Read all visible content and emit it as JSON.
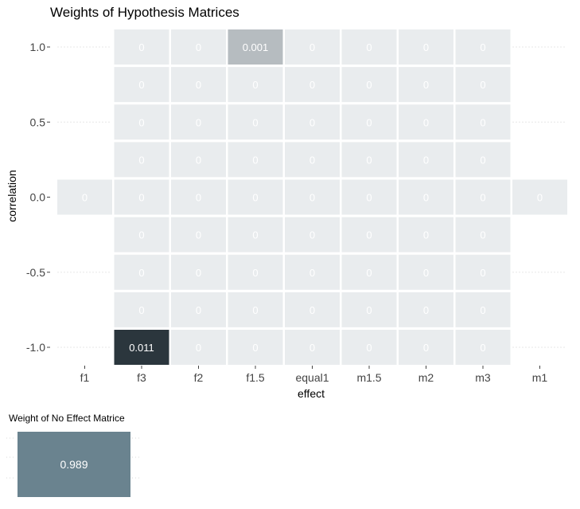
{
  "chart_data": [
    {
      "type": "heatmap",
      "title": "Weights of Hypothesis Matrices",
      "xlabel": "effect",
      "ylabel": "correlation",
      "x_categories": [
        "f1",
        "f3",
        "f2",
        "f1.5",
        "equal1",
        "m1.5",
        "m2",
        "m3",
        "m1"
      ],
      "y_rows": [
        1.0,
        0.75,
        0.5,
        0.25,
        0.0,
        -0.25,
        -0.5,
        -0.75,
        -1.0
      ],
      "y_tick_labels": [
        "1.0",
        "0.5",
        "0.0",
        "-0.5",
        "-1.0"
      ],
      "y_tick_values": [
        1.0,
        0.5,
        0.0,
        -0.5,
        -1.0
      ],
      "cells": [
        {
          "x": "f3",
          "y": 1.0,
          "value": 0,
          "label": "0"
        },
        {
          "x": "f2",
          "y": 1.0,
          "value": 0,
          "label": "0"
        },
        {
          "x": "f1.5",
          "y": 1.0,
          "value": 0.001,
          "label": "0.001"
        },
        {
          "x": "equal1",
          "y": 1.0,
          "value": 0,
          "label": "0"
        },
        {
          "x": "m1.5",
          "y": 1.0,
          "value": 0,
          "label": "0"
        },
        {
          "x": "m2",
          "y": 1.0,
          "value": 0,
          "label": "0"
        },
        {
          "x": "m3",
          "y": 1.0,
          "value": 0,
          "label": "0"
        },
        {
          "x": "f3",
          "y": 0.75,
          "value": 0,
          "label": "0"
        },
        {
          "x": "f2",
          "y": 0.75,
          "value": 0,
          "label": "0"
        },
        {
          "x": "f1.5",
          "y": 0.75,
          "value": 0,
          "label": "0"
        },
        {
          "x": "equal1",
          "y": 0.75,
          "value": 0,
          "label": "0"
        },
        {
          "x": "m1.5",
          "y": 0.75,
          "value": 0,
          "label": "0"
        },
        {
          "x": "m2",
          "y": 0.75,
          "value": 0,
          "label": "0"
        },
        {
          "x": "m3",
          "y": 0.75,
          "value": 0,
          "label": "0"
        },
        {
          "x": "f3",
          "y": 0.5,
          "value": 0,
          "label": "0"
        },
        {
          "x": "f2",
          "y": 0.5,
          "value": 0,
          "label": "0"
        },
        {
          "x": "f1.5",
          "y": 0.5,
          "value": 0,
          "label": "0"
        },
        {
          "x": "equal1",
          "y": 0.5,
          "value": 0,
          "label": "0"
        },
        {
          "x": "m1.5",
          "y": 0.5,
          "value": 0,
          "label": "0"
        },
        {
          "x": "m2",
          "y": 0.5,
          "value": 0,
          "label": "0"
        },
        {
          "x": "m3",
          "y": 0.5,
          "value": 0,
          "label": "0"
        },
        {
          "x": "f3",
          "y": 0.25,
          "value": 0,
          "label": "0"
        },
        {
          "x": "f2",
          "y": 0.25,
          "value": 0,
          "label": "0"
        },
        {
          "x": "f1.5",
          "y": 0.25,
          "value": 0,
          "label": "0"
        },
        {
          "x": "equal1",
          "y": 0.25,
          "value": 0,
          "label": "0"
        },
        {
          "x": "m1.5",
          "y": 0.25,
          "value": 0,
          "label": "0"
        },
        {
          "x": "m2",
          "y": 0.25,
          "value": 0,
          "label": "0"
        },
        {
          "x": "m3",
          "y": 0.25,
          "value": 0,
          "label": "0"
        },
        {
          "x": "f1",
          "y": 0.0,
          "value": 0,
          "label": "0"
        },
        {
          "x": "f3",
          "y": 0.0,
          "value": 0,
          "label": "0"
        },
        {
          "x": "f2",
          "y": 0.0,
          "value": 0,
          "label": "0"
        },
        {
          "x": "f1.5",
          "y": 0.0,
          "value": 0,
          "label": "0"
        },
        {
          "x": "equal1",
          "y": 0.0,
          "value": 0,
          "label": "0"
        },
        {
          "x": "m1.5",
          "y": 0.0,
          "value": 0,
          "label": "0"
        },
        {
          "x": "m2",
          "y": 0.0,
          "value": 0,
          "label": "0"
        },
        {
          "x": "m3",
          "y": 0.0,
          "value": 0,
          "label": "0"
        },
        {
          "x": "m1",
          "y": 0.0,
          "value": 0,
          "label": "0"
        },
        {
          "x": "f3",
          "y": -0.25,
          "value": 0,
          "label": "0"
        },
        {
          "x": "f2",
          "y": -0.25,
          "value": 0,
          "label": "0"
        },
        {
          "x": "f1.5",
          "y": -0.25,
          "value": 0,
          "label": "0"
        },
        {
          "x": "equal1",
          "y": -0.25,
          "value": 0,
          "label": "0"
        },
        {
          "x": "m1.5",
          "y": -0.25,
          "value": 0,
          "label": "0"
        },
        {
          "x": "m2",
          "y": -0.25,
          "value": 0,
          "label": "0"
        },
        {
          "x": "m3",
          "y": -0.25,
          "value": 0,
          "label": "0"
        },
        {
          "x": "f3",
          "y": -0.5,
          "value": 0,
          "label": "0"
        },
        {
          "x": "f2",
          "y": -0.5,
          "value": 0,
          "label": "0"
        },
        {
          "x": "f1.5",
          "y": -0.5,
          "value": 0,
          "label": "0"
        },
        {
          "x": "equal1",
          "y": -0.5,
          "value": 0,
          "label": "0"
        },
        {
          "x": "m1.5",
          "y": -0.5,
          "value": 0,
          "label": "0"
        },
        {
          "x": "m2",
          "y": -0.5,
          "value": 0,
          "label": "0"
        },
        {
          "x": "m3",
          "y": -0.5,
          "value": 0,
          "label": "0"
        },
        {
          "x": "f3",
          "y": -0.75,
          "value": 0,
          "label": "0"
        },
        {
          "x": "f2",
          "y": -0.75,
          "value": 0,
          "label": "0"
        },
        {
          "x": "f1.5",
          "y": -0.75,
          "value": 0,
          "label": "0"
        },
        {
          "x": "equal1",
          "y": -0.75,
          "value": 0,
          "label": "0"
        },
        {
          "x": "m1.5",
          "y": -0.75,
          "value": 0,
          "label": "0"
        },
        {
          "x": "m2",
          "y": -0.75,
          "value": 0,
          "label": "0"
        },
        {
          "x": "m3",
          "y": -0.75,
          "value": 0,
          "label": "0"
        },
        {
          "x": "f3",
          "y": -1.0,
          "value": 0.011,
          "label": "0.011"
        },
        {
          "x": "f2",
          "y": -1.0,
          "value": 0,
          "label": "0"
        },
        {
          "x": "f1.5",
          "y": -1.0,
          "value": 0,
          "label": "0"
        },
        {
          "x": "equal1",
          "y": -1.0,
          "value": 0,
          "label": "0"
        },
        {
          "x": "m1.5",
          "y": -1.0,
          "value": 0,
          "label": "0"
        },
        {
          "x": "m2",
          "y": -1.0,
          "value": 0,
          "label": "0"
        },
        {
          "x": "m3",
          "y": -1.0,
          "value": 0,
          "label": "0"
        }
      ],
      "colors": {
        "zero": "#e9ecee",
        "low": "#e1e6e9",
        "high": "#2b363d",
        "zero_text": "#ffffff"
      }
    },
    {
      "type": "heatmap",
      "title": "Weight of No Effect Matrice",
      "cells": [
        {
          "value": 0.989,
          "label": "0.989"
        }
      ],
      "colors": {
        "fill": "#6a838f",
        "text": "#ffffff"
      }
    }
  ]
}
